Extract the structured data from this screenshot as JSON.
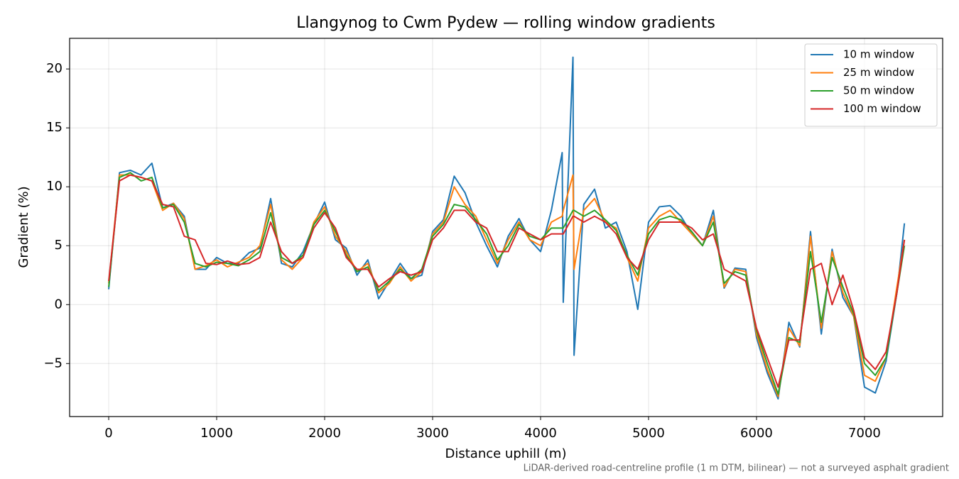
{
  "chart_data": {
    "type": "line",
    "title": "Llangynog to Cwm Pydew — rolling window gradients",
    "xlabel": "Distance uphill (m)",
    "ylabel": "Gradient (%)",
    "footnote": "LiDAR-derived road-centreline profile (1 m DTM, bilinear) — not a surveyed asphalt gradient",
    "x": [
      0,
      100,
      200,
      300,
      400,
      500,
      600,
      700,
      800,
      900,
      1000,
      1100,
      1200,
      1300,
      1400,
      1500,
      1600,
      1700,
      1800,
      1900,
      2000,
      2100,
      2200,
      2300,
      2400,
      2500,
      2600,
      2700,
      2800,
      2900,
      3000,
      3100,
      3200,
      3300,
      3400,
      3500,
      3600,
      3700,
      3800,
      3900,
      4000,
      4100,
      4200,
      4210,
      4300,
      4310,
      4400,
      4500,
      4600,
      4700,
      4800,
      4900,
      5000,
      5100,
      5200,
      5300,
      5400,
      5500,
      5600,
      5700,
      5800,
      5900,
      6000,
      6100,
      6200,
      6300,
      6400,
      6500,
      6600,
      6700,
      6800,
      6900,
      7000,
      7100,
      7200,
      7300,
      7370
    ],
    "series": [
      {
        "name": "10 m window",
        "color": "#1f77b4",
        "values": [
          1.3,
          11.2,
          11.4,
          11,
          12,
          8.2,
          8.6,
          7.5,
          3,
          3,
          4,
          3.5,
          3.5,
          4.4,
          4.8,
          9,
          3.5,
          3.2,
          4.5,
          6.8,
          8.7,
          5.5,
          4.8,
          2.5,
          3.8,
          0.5,
          2,
          3.5,
          2.2,
          2.5,
          6.2,
          7.2,
          10.9,
          9.5,
          7,
          5,
          3.2,
          5.8,
          7.3,
          5.5,
          4.5,
          8,
          12.9,
          0.2,
          21,
          -4.3,
          8.5,
          9.8,
          6.5,
          7,
          4.5,
          -0.4,
          7,
          8.3,
          8.4,
          7.5,
          6,
          5,
          8,
          1.4,
          3.1,
          3,
          -2.8,
          -5.8,
          -8,
          -1.5,
          -3.6,
          6.2,
          -2.5,
          4.7,
          0.6,
          -1,
          -7,
          -7.5,
          -4.8,
          1,
          6.9
        ]
      },
      {
        "name": "25 m window",
        "color": "#ff7f0e",
        "values": [
          1.8,
          11,
          11,
          10.8,
          10.5,
          8,
          8.6,
          7.3,
          3,
          3.3,
          3.8,
          3.2,
          3.6,
          4,
          5,
          8.5,
          3.8,
          3,
          4,
          7,
          8.3,
          5.8,
          4.5,
          2.8,
          3.5,
          1,
          1.8,
          3.2,
          2,
          2.8,
          6,
          7,
          10,
          8.5,
          7.5,
          5.5,
          3.5,
          5.5,
          7,
          5.5,
          5,
          7,
          7.5,
          8,
          11,
          3,
          8,
          9,
          7,
          6.5,
          4,
          2,
          6.5,
          7.5,
          8,
          7,
          6,
          5,
          7.5,
          1.5,
          3,
          2.8,
          -2.5,
          -5.5,
          -7.8,
          -2,
          -3.5,
          5.8,
          -2,
          4.5,
          1,
          -1,
          -6,
          -6.5,
          -4.5,
          1.5,
          5.5
        ]
      },
      {
        "name": "50 m window",
        "color": "#2ca02c",
        "values": [
          1.5,
          10.8,
          11.2,
          10.5,
          10.8,
          8.2,
          8.5,
          7,
          3.5,
          3.2,
          3.6,
          3.5,
          3.3,
          3.8,
          4.5,
          7.8,
          4,
          3.5,
          4.2,
          6.8,
          8,
          6.2,
          4.2,
          2.8,
          3.2,
          1.2,
          2,
          3,
          2.2,
          3,
          5.8,
          6.8,
          8.5,
          8.3,
          7.2,
          6,
          3.8,
          5,
          6.8,
          5.8,
          5.5,
          6.5,
          6.5,
          6.5,
          8,
          8,
          7.5,
          8,
          7.2,
          6.3,
          4.2,
          2.5,
          6,
          7.2,
          7.5,
          7.2,
          6.2,
          5,
          7,
          1.8,
          2.8,
          2.5,
          -2.2,
          -5,
          -7.6,
          -2.8,
          -3.2,
          4.5,
          -1.5,
          4,
          1.5,
          -0.8,
          -5,
          -6,
          -4.5,
          1,
          5
        ]
      },
      {
        "name": "100 m window",
        "color": "#d62728",
        "values": [
          2,
          10.5,
          11,
          10.8,
          10.5,
          8.5,
          8.3,
          5.8,
          5.5,
          3.5,
          3.4,
          3.7,
          3.4,
          3.5,
          4,
          7,
          4.5,
          3.5,
          4,
          6.5,
          7.8,
          6.5,
          4,
          3,
          3,
          1.5,
          2.2,
          2.8,
          2.5,
          2.8,
          5.5,
          6.5,
          8,
          8,
          7,
          6.5,
          4.5,
          4.5,
          6.5,
          6,
          5.5,
          6,
          6,
          6,
          7.5,
          7.5,
          7,
          7.5,
          7,
          6,
          4,
          3,
          5.5,
          7,
          7,
          7,
          6.5,
          5.5,
          6,
          3,
          2.5,
          2,
          -2,
          -4.5,
          -7,
          -3,
          -3,
          3,
          3.5,
          0,
          2.5,
          -0.5,
          -4.5,
          -5.5,
          -4,
          1,
          5.5
        ]
      }
    ],
    "xlim": [
      -362,
      7724
    ],
    "ylim": [
      -9.5,
      22.6
    ],
    "xticks": [
      0,
      1000,
      2000,
      3000,
      4000,
      5000,
      6000,
      7000
    ],
    "yticks": [
      {
        "value": -5,
        "label": "−5"
      },
      0,
      5,
      10,
      15,
      20
    ],
    "grid": true,
    "legend": "upper right"
  }
}
